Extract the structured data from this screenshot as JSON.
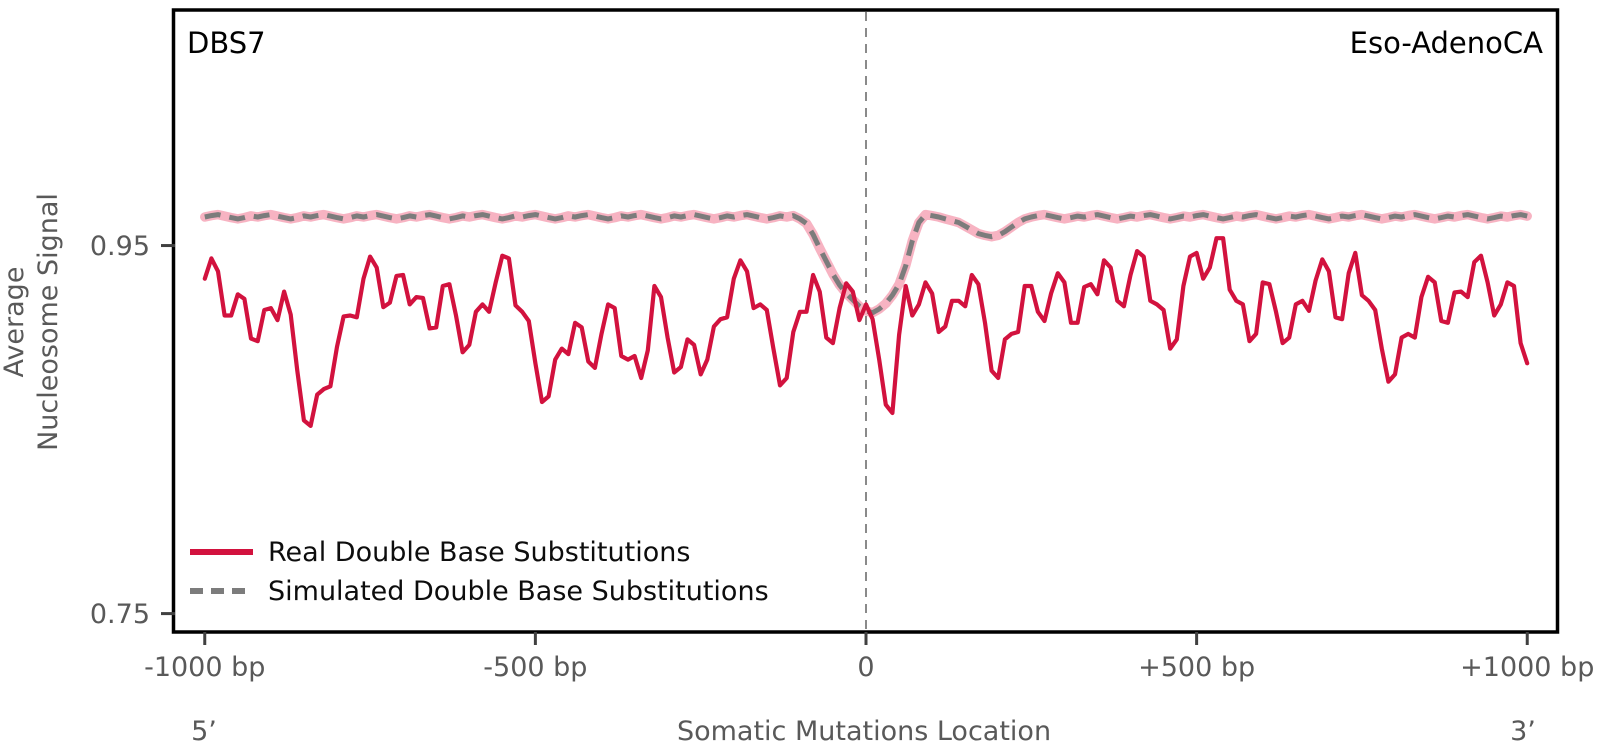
{
  "panel": {
    "signature_label": "DBS7",
    "cancer_type_label": "Eso-AdenoCA"
  },
  "chart_data": {
    "type": "line",
    "title": "",
    "xlabel": "Somatic Mutations Location",
    "ylabel": "Average Nucleosome Signal",
    "ylabel_lines": [
      "Average",
      "Nucleosome Signal"
    ],
    "five_prime_label": "5’",
    "three_prime_label": "3’",
    "xlim": [
      -1045,
      1045
    ],
    "ylim": [
      0.74,
      1.078
    ],
    "x_start": -1000,
    "x_step": 10,
    "vline_x": 0,
    "grid": false,
    "legend_position": "lower left",
    "x_ticks": [
      {
        "value": -1000,
        "label": "-1000 bp"
      },
      {
        "value": -500,
        "label": "-500 bp"
      },
      {
        "value": 0,
        "label": "0"
      },
      {
        "value": 500,
        "label": "+500 bp"
      },
      {
        "value": 1000,
        "label": "+1000 bp"
      }
    ],
    "y_ticks": [
      {
        "value": 0.95,
        "label": "0.95"
      },
      {
        "value": 0.75,
        "label": "0.75"
      }
    ],
    "series": [
      {
        "name": "Real Double Base Substitutions",
        "color": "#d2123e",
        "style": "solid",
        "values": [
          0.932,
          0.943,
          0.936,
          0.912,
          0.912,
          0.9235,
          0.921,
          0.8995,
          0.898,
          0.915,
          0.916,
          0.9095,
          0.925,
          0.9125,
          0.882,
          0.855,
          0.852,
          0.869,
          0.872,
          0.8735,
          0.895,
          0.9115,
          0.912,
          0.911,
          0.932,
          0.944,
          0.938,
          0.9165,
          0.919,
          0.9335,
          0.934,
          0.918,
          0.922,
          0.9215,
          0.905,
          0.9055,
          0.928,
          0.929,
          0.912,
          0.892,
          0.896,
          0.914,
          0.918,
          0.914,
          0.93,
          0.9445,
          0.943,
          0.9175,
          0.914,
          0.909,
          0.886,
          0.865,
          0.868,
          0.888,
          0.894,
          0.891,
          0.908,
          0.9055,
          0.887,
          0.8835,
          0.902,
          0.918,
          0.916,
          0.89,
          0.888,
          0.89,
          0.878,
          0.893,
          0.928,
          0.922,
          0.9,
          0.881,
          0.884,
          0.899,
          0.896,
          0.88,
          0.888,
          0.906,
          0.91,
          0.911,
          0.932,
          0.942,
          0.936,
          0.916,
          0.918,
          0.915,
          0.894,
          0.874,
          0.878,
          0.903,
          0.914,
          0.914,
          0.934,
          0.925,
          0.9,
          0.897,
          0.916,
          0.9295,
          0.925,
          0.9095,
          0.918,
          0.91,
          0.888,
          0.8635,
          0.859,
          0.9015,
          0.928,
          0.912,
          0.918,
          0.93,
          0.924,
          0.903,
          0.906,
          0.92,
          0.92,
          0.917,
          0.934,
          0.929,
          0.908,
          0.882,
          0.878,
          0.899,
          0.902,
          0.903,
          0.928,
          0.928,
          0.914,
          0.909,
          0.924,
          0.935,
          0.93,
          0.908,
          0.908,
          0.9275,
          0.929,
          0.9235,
          0.942,
          0.938,
          0.92,
          0.917,
          0.934,
          0.947,
          0.944,
          0.92,
          0.918,
          0.915,
          0.894,
          0.899,
          0.928,
          0.944,
          0.946,
          0.932,
          0.938,
          0.954,
          0.954,
          0.926,
          0.92,
          0.918,
          0.898,
          0.902,
          0.93,
          0.929,
          0.914,
          0.897,
          0.9,
          0.918,
          0.92,
          0.9145,
          0.931,
          0.9425,
          0.936,
          0.911,
          0.91,
          0.935,
          0.946,
          0.923,
          0.92,
          0.915,
          0.894,
          0.876,
          0.88,
          0.9,
          0.902,
          0.9,
          0.922,
          0.933,
          0.93,
          0.909,
          0.908,
          0.9245,
          0.925,
          0.922,
          0.941,
          0.9445,
          0.93,
          0.912,
          0.918,
          0.93,
          0.928,
          0.897,
          0.886
        ]
      },
      {
        "name": "Simulated Double Base Substitutions",
        "color": "#7c7c7c",
        "band_color": "#f7b3c2",
        "style": "dashed",
        "values": [
          0.9655,
          0.9663,
          0.9668,
          0.966,
          0.9652,
          0.9645,
          0.9652,
          0.9661,
          0.9655,
          0.9663,
          0.9668,
          0.966,
          0.9652,
          0.9645,
          0.9652,
          0.9661,
          0.9655,
          0.9663,
          0.9668,
          0.966,
          0.9652,
          0.9645,
          0.9652,
          0.9661,
          0.9655,
          0.9663,
          0.9668,
          0.966,
          0.9652,
          0.9645,
          0.9652,
          0.9661,
          0.9655,
          0.9663,
          0.9668,
          0.966,
          0.9652,
          0.9645,
          0.9652,
          0.9661,
          0.9655,
          0.9663,
          0.9668,
          0.966,
          0.9652,
          0.9645,
          0.9652,
          0.9661,
          0.9655,
          0.9663,
          0.9668,
          0.966,
          0.9652,
          0.9645,
          0.9652,
          0.9661,
          0.9655,
          0.9663,
          0.9668,
          0.966,
          0.9652,
          0.9645,
          0.9652,
          0.9661,
          0.9655,
          0.9663,
          0.9668,
          0.966,
          0.9652,
          0.9645,
          0.9652,
          0.9661,
          0.9655,
          0.9663,
          0.9668,
          0.966,
          0.9652,
          0.9645,
          0.9652,
          0.9661,
          0.9655,
          0.9663,
          0.9668,
          0.966,
          0.9652,
          0.9645,
          0.9652,
          0.9661,
          0.9655,
          0.9663,
          0.9645,
          0.962,
          0.956,
          0.9485,
          0.9415,
          0.9345,
          0.9285,
          0.924,
          0.9205,
          0.917,
          0.9145,
          0.9135,
          0.9155,
          0.9185,
          0.923,
          0.929,
          0.939,
          0.9525,
          0.9625,
          0.9668,
          0.9662,
          0.9655,
          0.9645,
          0.9635,
          0.9625,
          0.9605,
          0.9585,
          0.9565,
          0.9555,
          0.9548,
          0.9555,
          0.9575,
          0.96,
          0.9625,
          0.9645,
          0.9655,
          0.9663,
          0.9668,
          0.966,
          0.9652,
          0.9645,
          0.9652,
          0.966,
          0.9655,
          0.9663,
          0.9668,
          0.966,
          0.9652,
          0.9645,
          0.9652,
          0.966,
          0.9655,
          0.9663,
          0.9668,
          0.966,
          0.9652,
          0.9645,
          0.9652,
          0.966,
          0.9655,
          0.9663,
          0.9668,
          0.966,
          0.9652,
          0.9645,
          0.9652,
          0.966,
          0.9655,
          0.9663,
          0.9668,
          0.966,
          0.9652,
          0.9645,
          0.9652,
          0.966,
          0.9655,
          0.9663,
          0.9668,
          0.966,
          0.9652,
          0.9645,
          0.9652,
          0.966,
          0.9655,
          0.9663,
          0.9668,
          0.966,
          0.9652,
          0.9645,
          0.9652,
          0.966,
          0.9655,
          0.9663,
          0.9668,
          0.966,
          0.9652,
          0.9645,
          0.9652,
          0.966,
          0.9655,
          0.9663,
          0.9668,
          0.966,
          0.9652,
          0.9645,
          0.9652,
          0.966,
          0.9655,
          0.9663,
          0.9668,
          0.966
        ]
      }
    ]
  }
}
